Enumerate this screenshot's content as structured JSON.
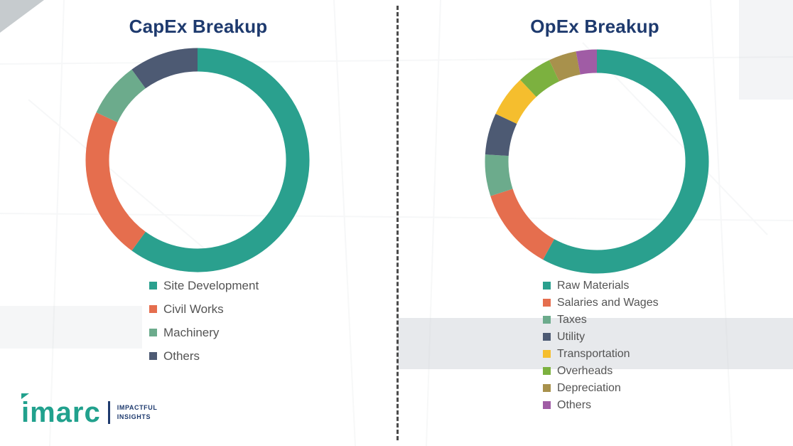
{
  "colors": {
    "title": "#1E3A6E",
    "legend_text": "#545454",
    "divider": "#4B4B4B",
    "brand_teal": "#21A18D",
    "brand_navy": "#1E3A6E"
  },
  "chart_data": [
    {
      "type": "pie",
      "style": "donut",
      "title": "CapEx Breakup",
      "labels": [
        "Site Development",
        "Civil Works",
        "Machinery",
        "Others"
      ],
      "values": [
        60,
        22,
        8,
        10
      ],
      "colors": [
        "#2AA08E",
        "#E56E4E",
        "#6CAB8C",
        "#4D5A73"
      ],
      "start_angle": "top",
      "direction": "clockwise",
      "legend_position": "below-chart"
    },
    {
      "type": "pie",
      "style": "donut",
      "title": "OpEx Breakup",
      "labels": [
        "Raw Materials",
        "Salaries and Wages",
        "Taxes",
        "Utility",
        "Transportation",
        "Overheads",
        "Depreciation",
        "Others"
      ],
      "values": [
        58,
        12,
        6,
        6,
        6,
        5,
        4,
        3
      ],
      "colors": [
        "#2AA08E",
        "#E56E4E",
        "#6CAB8C",
        "#4D5A73",
        "#F5BE2E",
        "#7CB13F",
        "#A8914C",
        "#A05CA5"
      ],
      "start_angle": "top",
      "direction": "clockwise",
      "legend_position": "below-chart"
    }
  ],
  "branding": {
    "logo_text": "imarc",
    "tagline_line1": "IMPACTFUL",
    "tagline_line2": "INSIGHTS"
  }
}
